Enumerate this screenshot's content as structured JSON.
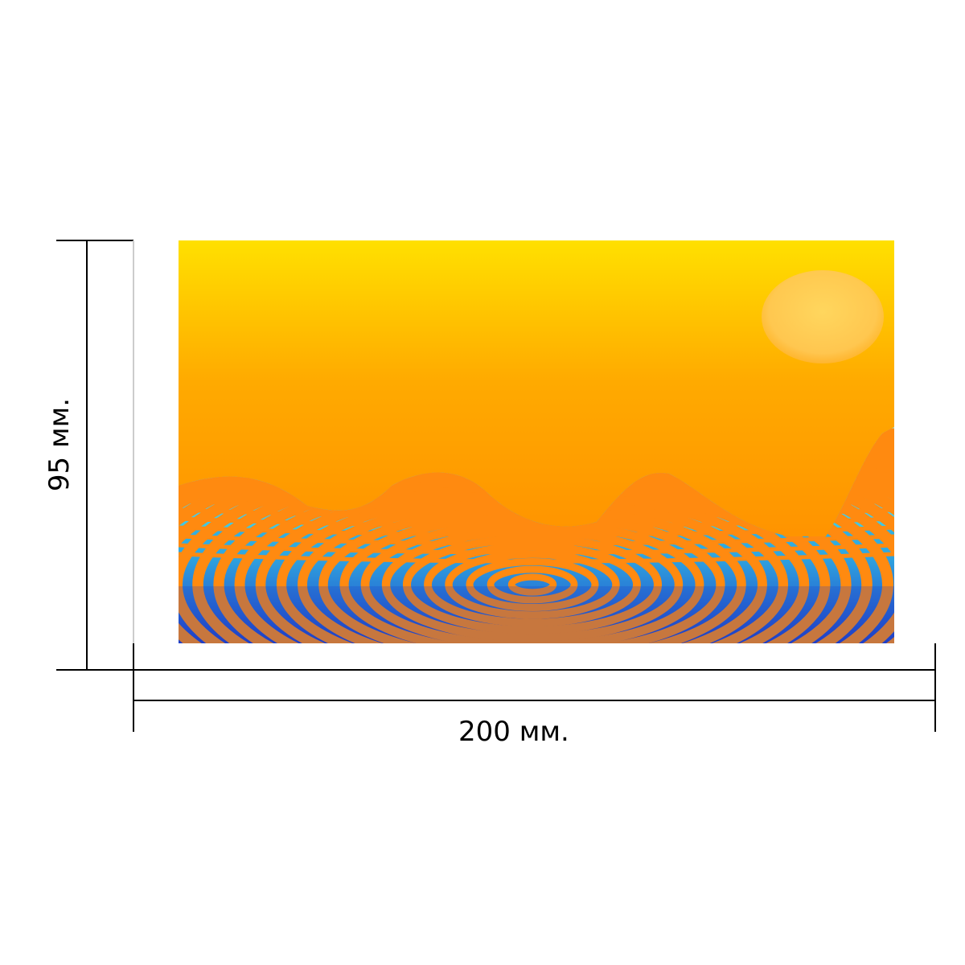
{
  "dimensions": {
    "width_label": "200 мм.",
    "height_label": "95 мм."
  },
  "artwork": {
    "description_icon": "sunset-ripple-landscape",
    "colors": {
      "sky_top": "#ffe000",
      "sky_mid": "#ffa500",
      "sky_bottom": "#ff8800",
      "ripple_cyan": "#40e0e8",
      "ripple_blue": "#2050d0",
      "ripple_white": "#e8f4f8",
      "sun": "#ffd060"
    }
  }
}
